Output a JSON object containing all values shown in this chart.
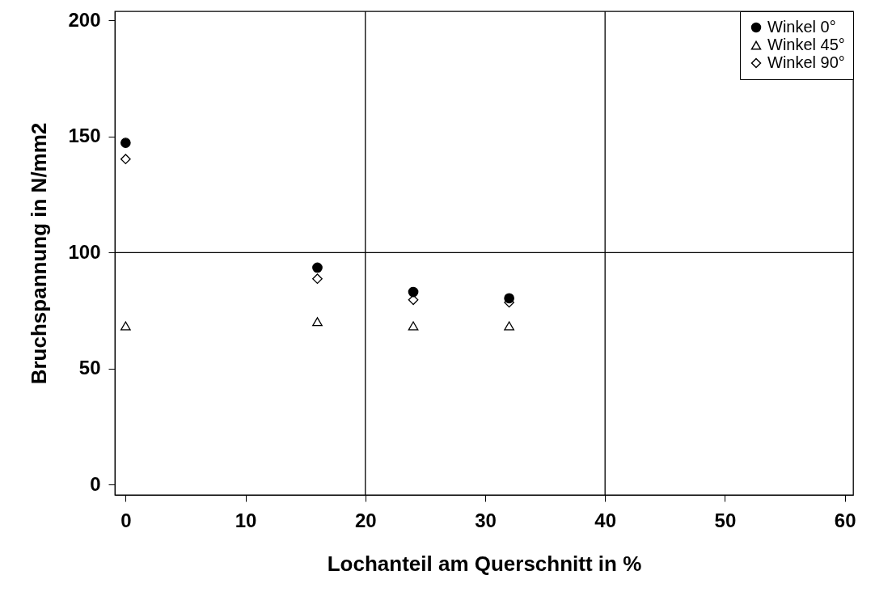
{
  "chart_data": {
    "type": "scatter",
    "xlabel": "Lochanteil am Querschnitt in %",
    "ylabel": "Bruchspannung in N/mm2",
    "x": [
      0,
      16,
      24,
      32
    ],
    "series": [
      {
        "name": "Winkel  0°",
        "color": "#000000",
        "marker": "circle",
        "values": [
          147.3,
          93.5,
          83,
          80.3
        ]
      },
      {
        "name": "Winkel 45°",
        "color": "#000000",
        "marker": "triangle",
        "values": [
          68.4,
          70.2,
          68.4,
          68.4
        ]
      },
      {
        "name": "Winkel 90°",
        "color": "#000000",
        "marker": "diamond",
        "values": [
          140.3,
          88.7,
          79.6,
          78.5
        ]
      }
    ],
    "xlim": [
      -0.9,
      60.7
    ],
    "xticks": [
      0,
      10,
      20,
      30,
      40,
      50,
      60
    ],
    "ylim": [
      -4.5,
      204
    ],
    "yticks": [
      0,
      50,
      100,
      150,
      200
    ],
    "ref_lines": [
      {
        "axis": "x",
        "value": 20,
        "color": "#000000"
      },
      {
        "axis": "x",
        "value": 40,
        "color": "#000000"
      },
      {
        "axis": "y",
        "value": 100,
        "color": "#000000"
      }
    ],
    "legend": "top right",
    "grid": false
  }
}
